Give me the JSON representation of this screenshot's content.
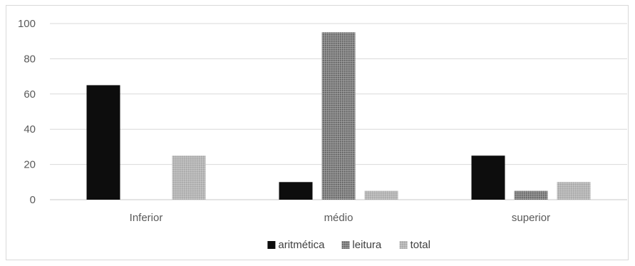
{
  "chart_data": {
    "type": "bar",
    "categories": [
      "Inferior",
      "médio",
      "superior"
    ],
    "series": [
      {
        "name": "aritmética",
        "values": [
          65,
          10,
          25
        ],
        "color": "#0d0d0d",
        "pattern": "solid"
      },
      {
        "name": "leitura",
        "values": [
          0,
          95,
          5
        ],
        "color": "#7a7a7a",
        "pattern": "dense-dots"
      },
      {
        "name": "total",
        "values": [
          25,
          5,
          10
        ],
        "color": "#b3b3b3",
        "pattern": "light-dots"
      }
    ],
    "ylim": [
      0,
      100
    ],
    "yticks": [
      "0",
      "20",
      "40",
      "60",
      "80",
      "100"
    ],
    "grid": true,
    "legend_position": "bottom",
    "title": "",
    "xlabel": "",
    "ylabel": ""
  }
}
